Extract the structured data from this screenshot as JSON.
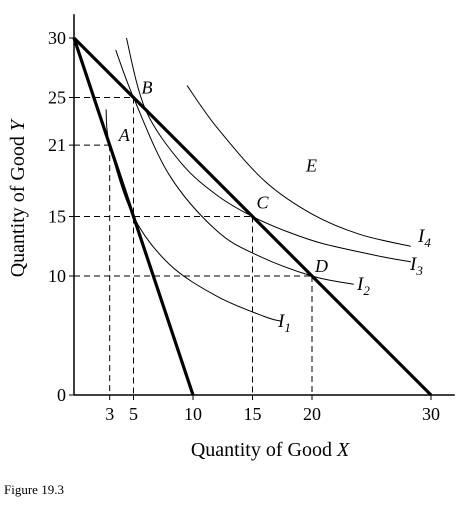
{
  "chart_data": {
    "type": "line",
    "xlabel_prefix": "Quantity of Good ",
    "xlabel_var": "X",
    "ylabel_prefix": "Quantity of Good ",
    "ylabel_var": "Y",
    "xlim": [
      0,
      32
    ],
    "ylim": [
      0,
      32
    ],
    "x_ticks": [
      3,
      5,
      10,
      15,
      20,
      30
    ],
    "y_ticks": [
      0,
      10,
      15,
      21,
      25,
      30
    ],
    "budget_lines": [
      {
        "from": [
          0,
          30
        ],
        "to": [
          10,
          0
        ]
      },
      {
        "from": [
          0,
          30
        ],
        "to": [
          30,
          0
        ]
      }
    ],
    "points": [
      {
        "label": "A",
        "x": 3,
        "y": 21
      },
      {
        "label": "B",
        "x": 5,
        "y": 25
      },
      {
        "label": "C",
        "x": 15,
        "y": 15
      },
      {
        "label": "D",
        "x": 20,
        "y": 10
      },
      {
        "label": "E",
        "x": 19.5,
        "y": 18.8
      }
    ],
    "indifference_curves": [
      {
        "label_base": "I",
        "label_sub": "1",
        "points": [
          [
            2.7,
            24
          ],
          [
            3,
            21
          ],
          [
            5,
            15
          ],
          [
            8,
            11
          ],
          [
            12,
            8.3
          ],
          [
            16,
            6.6
          ],
          [
            17.4,
            6.2
          ]
        ]
      },
      {
        "label_base": "I",
        "label_sub": "2",
        "points": [
          [
            3.5,
            29
          ],
          [
            5,
            25
          ],
          [
            8,
            18.5
          ],
          [
            12,
            13.8
          ],
          [
            15.5,
            11.7
          ],
          [
            20,
            10
          ],
          [
            23.5,
            9.3
          ]
        ]
      },
      {
        "label_base": "I",
        "label_sub": "3",
        "points": [
          [
            4.4,
            30
          ],
          [
            6,
            24
          ],
          [
            9,
            19.5
          ],
          [
            12,
            16.8
          ],
          [
            15,
            15
          ],
          [
            18,
            13.7
          ],
          [
            21,
            12.7
          ],
          [
            26,
            11.6
          ],
          [
            28.3,
            11.2
          ]
        ]
      },
      {
        "label_base": "I",
        "label_sub": "4",
        "points": [
          [
            9.5,
            26
          ],
          [
            12,
            22.5
          ],
          [
            16,
            18
          ],
          [
            20,
            15.2
          ],
          [
            24,
            13.5
          ],
          [
            28.3,
            12.5
          ]
        ]
      }
    ]
  },
  "figure_caption": "Figure 19.3"
}
